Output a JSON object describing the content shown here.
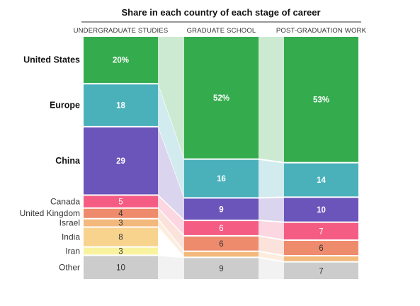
{
  "chart_data": {
    "type": "bar",
    "title": "Share in each country of each stage of career",
    "columns": [
      "UNDERGRADUATE STUDIES",
      "GRADUATE SCHOOL",
      "POST-GRADUATION WORK"
    ],
    "categories": [
      "United States",
      "Europe",
      "China",
      "Canada",
      "United Kingdom",
      "Israel",
      "India",
      "Iran",
      "Other"
    ],
    "major_categories": [
      "United States",
      "Europe",
      "China"
    ],
    "series": [
      {
        "name": "UNDERGRADUATE STUDIES",
        "values": [
          20,
          18,
          29,
          5,
          4,
          3,
          8,
          3,
          10
        ]
      },
      {
        "name": "GRADUATE SCHOOL",
        "values": [
          52,
          16,
          9,
          6,
          6,
          2,
          0,
          0,
          9
        ]
      },
      {
        "name": "POST-GRADUATION WORK",
        "values": [
          53,
          14,
          10,
          7,
          6,
          2,
          0,
          0,
          7
        ]
      }
    ],
    "labels": [
      [
        "20%",
        "18",
        "29",
        "5",
        "4",
        "3",
        "8",
        "3",
        "10"
      ],
      [
        "52%",
        "16",
        "9",
        "6",
        "6",
        "",
        "",
        "",
        "9"
      ],
      [
        "53%",
        "14",
        "10",
        "7",
        "6",
        "",
        "",
        "",
        "7"
      ]
    ],
    "colors": {
      "United States": "#34ab4d",
      "Europe": "#4ab1bb",
      "China": "#6b54ba",
      "Canada": "#f55c83",
      "United Kingdom": "#ee8b6d",
      "Israel": "#f2b87c",
      "India": "#f7d38e",
      "Iran": "#f9f3a0",
      "Other": "#cccccc"
    },
    "ylim": [
      0,
      100
    ]
  }
}
